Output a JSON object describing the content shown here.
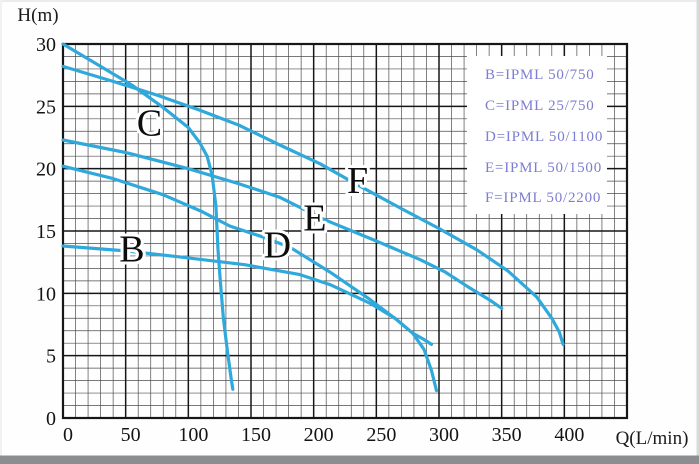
{
  "chart_data": {
    "type": "line",
    "title": "",
    "xlabel": "Q(L/min)",
    "ylabel": "H(m)",
    "xlim": [
      0,
      450
    ],
    "ylim": [
      0,
      30
    ],
    "x_major_step": 50,
    "x_minor_step": 10,
    "y_major_step": 5,
    "y_minor_step": 1,
    "x_ticks": [
      0,
      50,
      100,
      150,
      200,
      250,
      300,
      350,
      400
    ],
    "y_ticks": [
      0,
      5,
      10,
      15,
      20,
      25,
      30
    ],
    "grid": "on",
    "curve_color": "#2fa9dc",
    "grid_minor_color": "#4d4d4d",
    "grid_major_color": "#161616",
    "tick_label_color": "#141414",
    "series": [
      {
        "name": "B",
        "label_pos": [
          55,
          13.6
        ],
        "points": [
          [
            0,
            13.8
          ],
          [
            50,
            13.4
          ],
          [
            95,
            12.9
          ],
          [
            145,
            12.3
          ],
          [
            189,
            11.5
          ],
          [
            213,
            10.7
          ],
          [
            245,
            9.2
          ],
          [
            265,
            8.0
          ],
          [
            279,
            6.8
          ],
          [
            288,
            6.3
          ],
          [
            294,
            5.9
          ]
        ]
      },
      {
        "name": "C",
        "label_pos": [
          69,
          23.7
        ],
        "points": [
          [
            0,
            30
          ],
          [
            30,
            28.2
          ],
          [
            55,
            26.7
          ],
          [
            80,
            24.9
          ],
          [
            100,
            23.3
          ],
          [
            109,
            22.1
          ],
          [
            115,
            21.0
          ],
          [
            119,
            19.5
          ],
          [
            122,
            17.0
          ],
          [
            123.7,
            13.5
          ],
          [
            125.5,
            11.0
          ],
          [
            128,
            8.0
          ],
          [
            131,
            5.5
          ],
          [
            134,
            3.3
          ],
          [
            135.5,
            2.3
          ]
        ]
      },
      {
        "name": "D",
        "label_pos": [
          171,
          13.9
        ],
        "points": [
          [
            0,
            20.2
          ],
          [
            40,
            19.2
          ],
          [
            80,
            17.9
          ],
          [
            110,
            16.6
          ],
          [
            133,
            15.4
          ],
          [
            160,
            14.5
          ],
          [
            181,
            13.7
          ],
          [
            213,
            11.7
          ],
          [
            245,
            9.5
          ],
          [
            266,
            7.9
          ],
          [
            279,
            6.8
          ],
          [
            288,
            5.5
          ],
          [
            294,
            3.8
          ],
          [
            298,
            2.2
          ]
        ]
      },
      {
        "name": "E",
        "label_pos": [
          201,
          16.1
        ],
        "points": [
          [
            0,
            22.3
          ],
          [
            50,
            21.3
          ],
          [
            100,
            20.0
          ],
          [
            140,
            18.8
          ],
          [
            173,
            17.7
          ],
          [
            209,
            15.9
          ],
          [
            250,
            14.2
          ],
          [
            285,
            12.7
          ],
          [
            305,
            11.7
          ],
          [
            325,
            10.4
          ],
          [
            340,
            9.5
          ],
          [
            350,
            8.8
          ]
        ]
      },
      {
        "name": "F",
        "label_pos": [
          235,
          19.1
        ],
        "points": [
          [
            0,
            28.2
          ],
          [
            40,
            27.0
          ],
          [
            75,
            25.9
          ],
          [
            109,
            24.7
          ],
          [
            140,
            23.5
          ],
          [
            173,
            21.9
          ],
          [
            205,
            20.4
          ],
          [
            235,
            18.7
          ],
          [
            270,
            16.8
          ],
          [
            300,
            15.2
          ],
          [
            330,
            13.5
          ],
          [
            355,
            11.8
          ],
          [
            378,
            9.7
          ],
          [
            390,
            8.0
          ],
          [
            396,
            6.9
          ],
          [
            399,
            5.9
          ]
        ]
      }
    ],
    "legend": {
      "position": "top-right",
      "text_color": "#7d7dd2",
      "entries": [
        "B=IPML 50/750",
        "C=IPML 25/750",
        "D=IPML 50/1100",
        "E=IPML 50/1500",
        "F=IPML 50/2200"
      ]
    }
  }
}
